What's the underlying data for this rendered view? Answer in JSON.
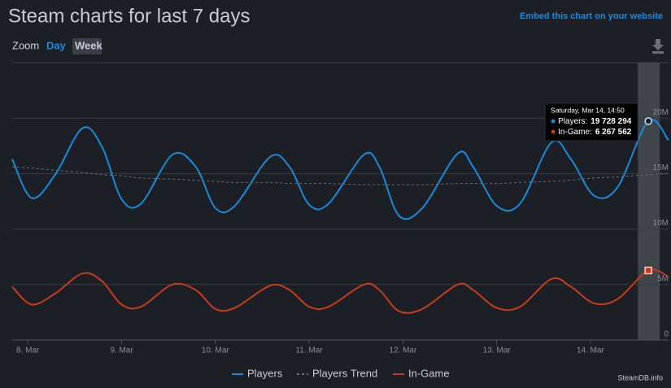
{
  "chart_data": {
    "type": "line",
    "title": "Steam charts for last 7 days",
    "x": [
      -4,
      1,
      7,
      14,
      19,
      24,
      29,
      37,
      43,
      48,
      53,
      62,
      67,
      72,
      77,
      86,
      90,
      95,
      101,
      110,
      114,
      120,
      126,
      134,
      139,
      145,
      151,
      158.83,
      164
    ],
    "series": [
      {
        "name": "Players",
        "color": "#1b8ad6",
        "dashed": false,
        "values": [
          16300000,
          12800000,
          14900000,
          19100000,
          17400000,
          12700000,
          12300000,
          16700000,
          15600000,
          11900000,
          12100000,
          16500000,
          15600000,
          12200000,
          12300000,
          16700000,
          15600000,
          11200000,
          11900000,
          16800000,
          15600000,
          12100000,
          12300000,
          17800000,
          16300000,
          13000000,
          13800000,
          19728294,
          18000000
        ]
      },
      {
        "name": "Players Trend",
        "color": "#6b6e74",
        "dashed": true,
        "values": [
          15600000,
          15500000,
          15300000,
          15100000,
          14900000,
          14800000,
          14600000,
          14500000,
          14400000,
          14300000,
          14200000,
          14200000,
          14100000,
          14100000,
          14100000,
          14000000,
          14000000,
          14000000,
          14000000,
          14100000,
          14100000,
          14100000,
          14200000,
          14300000,
          14400000,
          14600000,
          14700000,
          14900000,
          15000000
        ]
      },
      {
        "name": "In-Game",
        "color": "#c63c1c",
        "dashed": false,
        "values": [
          4800000,
          3200000,
          4200000,
          6000000,
          5300000,
          3200000,
          3000000,
          5000000,
          4500000,
          2800000,
          2900000,
          4900000,
          4500000,
          3000000,
          3000000,
          5000000,
          4500000,
          2600000,
          2800000,
          5000000,
          4500000,
          2900000,
          3000000,
          5500000,
          4800000,
          3300000,
          3700000,
          6267562,
          5700000
        ]
      }
    ],
    "xlim": [
      -4,
      164
    ],
    "xticks": [
      {
        "value": 0,
        "label": "8. Mar"
      },
      {
        "value": 24,
        "label": "9. Mar"
      },
      {
        "value": 48,
        "label": "10. Mar"
      },
      {
        "value": 72,
        "label": "11. Mar"
      },
      {
        "value": 96,
        "label": "12. Mar"
      },
      {
        "value": 120,
        "label": "13. Mar"
      },
      {
        "value": 144,
        "label": "14. Mar"
      }
    ],
    "ylim": [
      0,
      25000000
    ],
    "yticks": [
      0,
      {
        "value": 5000000,
        "label": "5M"
      },
      {
        "value": 10000000,
        "label": "10M"
      },
      {
        "value": 15000000,
        "label": "15M"
      },
      {
        "value": 20000000,
        "label": "20M"
      }
    ],
    "grid": true,
    "legend": "bottom",
    "tooltip": {
      "title": "Saturday, Mar 14, 14:50",
      "items": [
        {
          "label": "Players:",
          "value": 19728294,
          "value_label": "19 728 294"
        },
        {
          "label": "In-Game:",
          "value": 6267562,
          "value_label": "6 267 562"
        }
      ]
    }
  },
  "controls": {
    "embed": "Embed this chart on your website",
    "zoom": "Zoom",
    "day": "Day",
    "week": "Week",
    "credit": "SteamDB.info"
  }
}
